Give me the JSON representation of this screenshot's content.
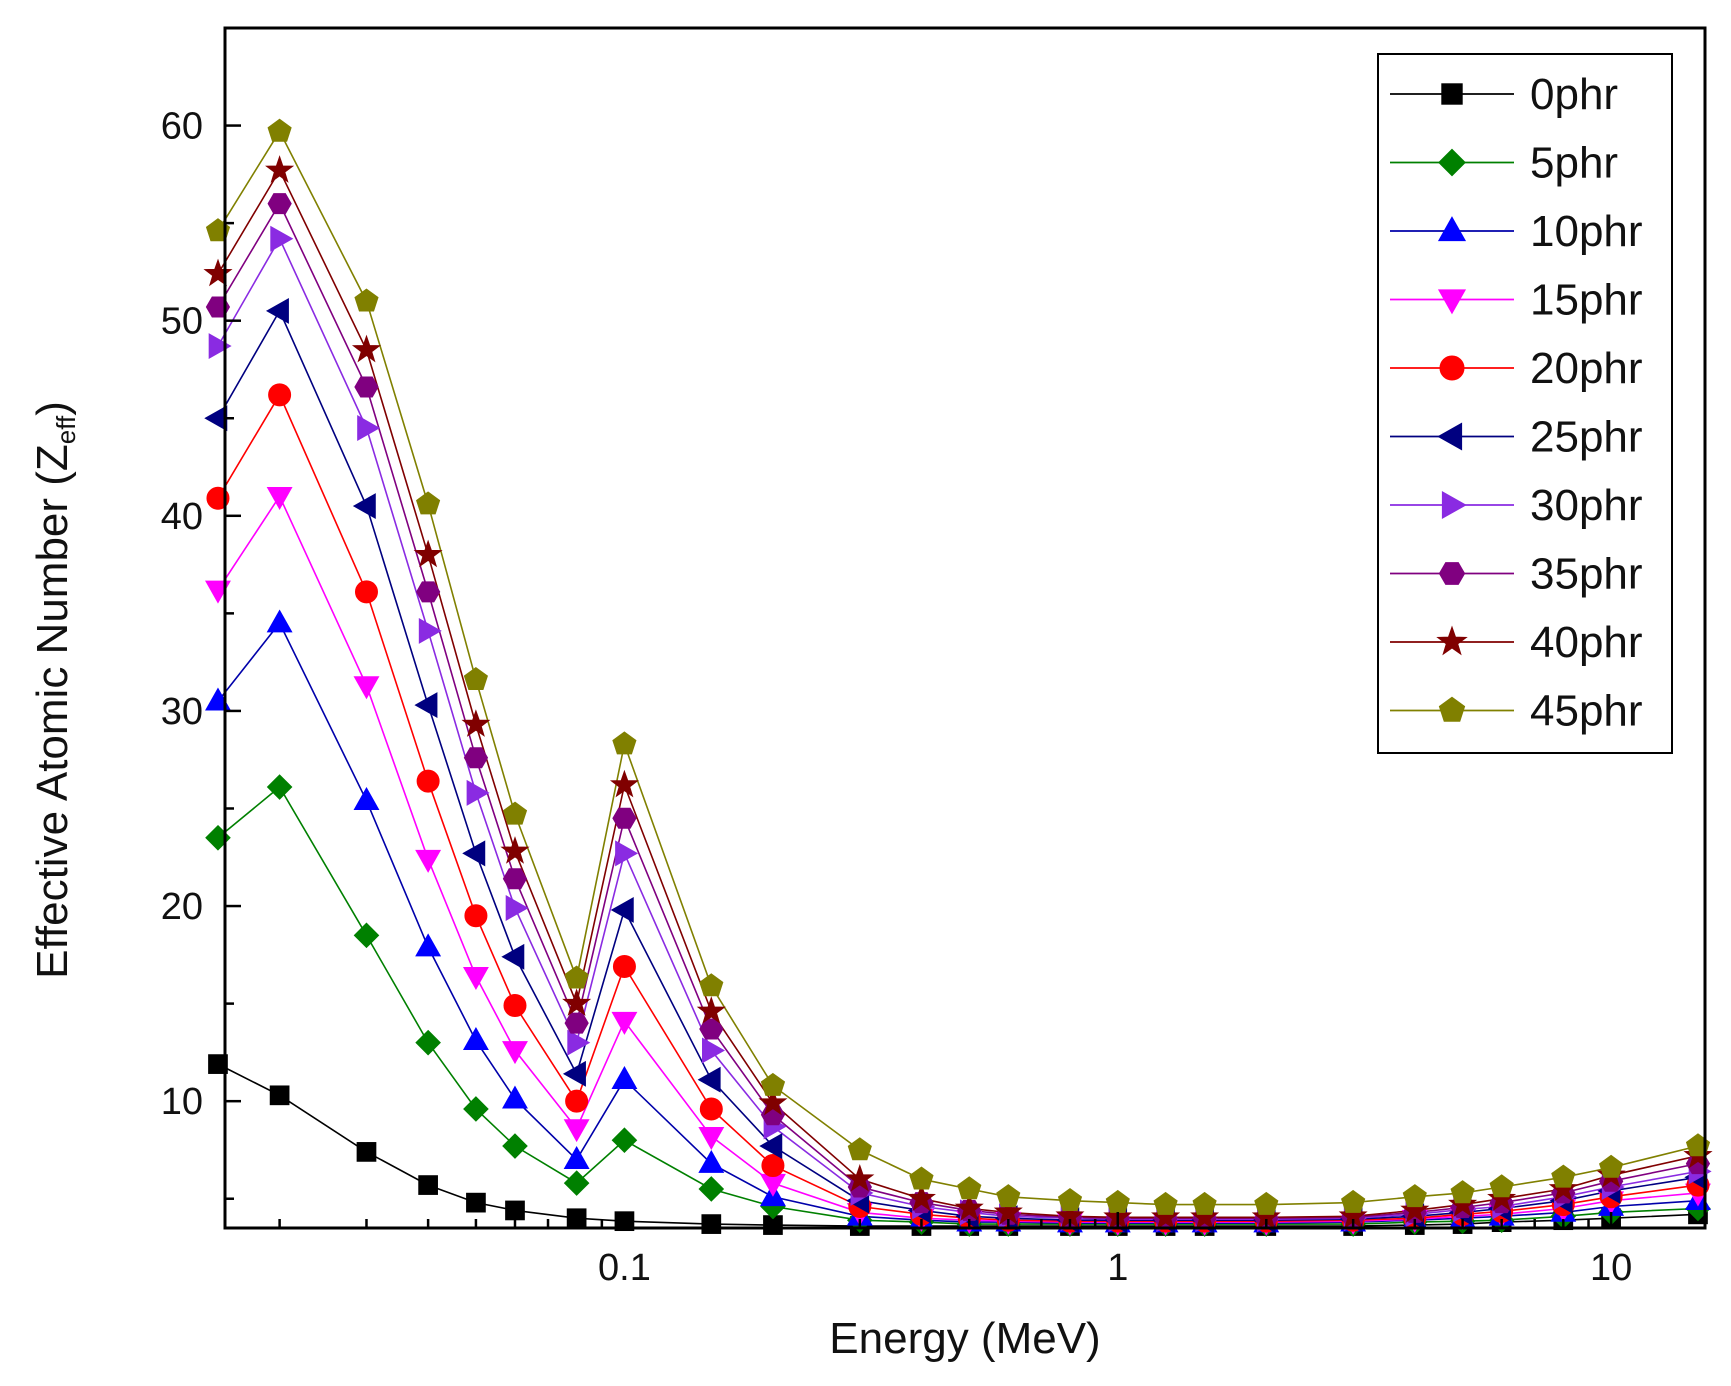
{
  "chart_data": {
    "type": "line",
    "title": "",
    "xlabel": "Energy (MeV)",
    "ylabel_main": "Effective Atomic Number (Z",
    "ylabel_sub": "eff",
    "ylabel_close": ")",
    "xscale": "log",
    "xlim": [
      0.0155,
      15.5
    ],
    "ylim": [
      3.5,
      65
    ],
    "xticks": [
      {
        "value": 0.1,
        "label": "0.1"
      },
      {
        "value": 1,
        "label": "1"
      },
      {
        "value": 10,
        "label": "10"
      }
    ],
    "yticks": [
      {
        "value": 10,
        "label": "10"
      },
      {
        "value": 20,
        "label": "20"
      },
      {
        "value": 30,
        "label": "30"
      },
      {
        "value": 40,
        "label": "40"
      },
      {
        "value": 50,
        "label": "50"
      },
      {
        "value": 60,
        "label": "60"
      }
    ],
    "legend_position": "top-right",
    "x": [
      0.015,
      0.02,
      0.03,
      0.04,
      0.05,
      0.06,
      0.08,
      0.1,
      0.15,
      0.2,
      0.3,
      0.4,
      0.5,
      0.6,
      0.8,
      1,
      1.25,
      1.5,
      2,
      3,
      4,
      5,
      6,
      8,
      10,
      15
    ],
    "series": [
      {
        "name": "0phr",
        "marker": "square",
        "color": "#000000",
        "line_color": "#000000",
        "values": [
          11.9,
          10.3,
          7.4,
          5.7,
          4.8,
          4.4,
          4.0,
          3.85,
          3.7,
          3.65,
          3.6,
          3.6,
          3.6,
          3.6,
          3.6,
          3.6,
          3.6,
          3.6,
          3.6,
          3.6,
          3.65,
          3.7,
          3.8,
          3.9,
          4.0,
          4.2
        ]
      },
      {
        "name": "5phr",
        "marker": "diamond",
        "color": "#008000",
        "line_color": "#008000",
        "values": [
          23.5,
          26.1,
          18.5,
          13.0,
          9.6,
          7.7,
          5.8,
          8.0,
          5.5,
          4.6,
          3.9,
          3.8,
          3.7,
          3.7,
          3.7,
          3.7,
          3.7,
          3.7,
          3.7,
          3.7,
          3.8,
          3.85,
          3.9,
          4.1,
          4.3,
          4.5
        ]
      },
      {
        "name": "10phr",
        "marker": "triangle-up",
        "color": "#0000ff",
        "line_color": "#0000aa",
        "values": [
          30.5,
          34.5,
          25.4,
          17.9,
          13.1,
          10.1,
          7.0,
          11.1,
          6.8,
          5.1,
          4.1,
          3.9,
          3.8,
          3.8,
          3.75,
          3.75,
          3.75,
          3.75,
          3.75,
          3.8,
          3.9,
          4.0,
          4.1,
          4.3,
          4.6,
          4.9
        ]
      },
      {
        "name": "15phr",
        "marker": "triangle-down",
        "color": "#ff00ff",
        "line_color": "#ff00ff",
        "values": [
          36.2,
          41.0,
          31.3,
          22.4,
          16.4,
          12.6,
          8.6,
          14.1,
          8.2,
          5.8,
          4.3,
          4.0,
          3.9,
          3.85,
          3.8,
          3.8,
          3.8,
          3.8,
          3.8,
          3.85,
          3.95,
          4.1,
          4.2,
          4.5,
          4.9,
          5.3
        ]
      },
      {
        "name": "20phr",
        "marker": "circle",
        "color": "#ff0000",
        "line_color": "#ff0000",
        "values": [
          40.9,
          46.2,
          36.1,
          26.4,
          19.5,
          14.9,
          10.0,
          16.9,
          9.6,
          6.7,
          4.6,
          4.2,
          4.0,
          3.9,
          3.85,
          3.85,
          3.85,
          3.85,
          3.85,
          3.9,
          4.0,
          4.2,
          4.35,
          4.7,
          5.1,
          5.7
        ]
      },
      {
        "name": "25phr",
        "marker": "triangle-left",
        "color": "#000080",
        "line_color": "#000080",
        "values": [
          45.0,
          50.5,
          40.5,
          30.3,
          22.7,
          17.4,
          11.4,
          19.8,
          11.1,
          7.7,
          4.9,
          4.4,
          4.1,
          4.0,
          3.9,
          3.9,
          3.9,
          3.9,
          3.9,
          3.95,
          4.1,
          4.3,
          4.5,
          4.9,
          5.4,
          6.1
        ]
      },
      {
        "name": "30phr",
        "marker": "triangle-right",
        "color": "#8a2be2",
        "line_color": "#8a2be2",
        "values": [
          48.7,
          54.2,
          44.5,
          34.1,
          25.8,
          19.9,
          13.0,
          22.7,
          12.6,
          8.7,
          5.3,
          4.6,
          4.3,
          4.1,
          4.0,
          3.95,
          3.95,
          3.95,
          3.95,
          4.0,
          4.2,
          4.45,
          4.6,
          5.1,
          5.6,
          6.4
        ]
      },
      {
        "name": "35phr",
        "marker": "hexagon",
        "color": "#800080",
        "line_color": "#800080",
        "values": [
          50.7,
          56.0,
          46.6,
          36.1,
          27.6,
          21.4,
          14.0,
          24.5,
          13.7,
          9.3,
          5.6,
          4.8,
          4.4,
          4.2,
          4.05,
          4.0,
          4.0,
          4.0,
          4.0,
          4.05,
          4.3,
          4.55,
          4.8,
          5.3,
          5.9,
          6.8
        ]
      },
      {
        "name": "40phr",
        "marker": "star",
        "color": "#800000",
        "line_color": "#800000",
        "values": [
          52.4,
          57.7,
          48.5,
          38.0,
          29.3,
          22.8,
          15.0,
          26.2,
          14.6,
          9.9,
          6.0,
          5.0,
          4.5,
          4.3,
          4.1,
          4.05,
          4.05,
          4.05,
          4.05,
          4.1,
          4.4,
          4.7,
          5.0,
          5.5,
          6.2,
          7.2
        ]
      },
      {
        "name": "45phr",
        "marker": "pentagon",
        "color": "#808000",
        "line_color": "#808000",
        "values": [
          54.6,
          59.7,
          51.0,
          40.6,
          31.6,
          24.7,
          16.3,
          28.3,
          15.9,
          10.8,
          7.5,
          6.0,
          5.5,
          5.1,
          4.9,
          4.8,
          4.7,
          4.7,
          4.7,
          4.8,
          5.1,
          5.3,
          5.6,
          6.1,
          6.6,
          7.7
        ]
      }
    ]
  }
}
